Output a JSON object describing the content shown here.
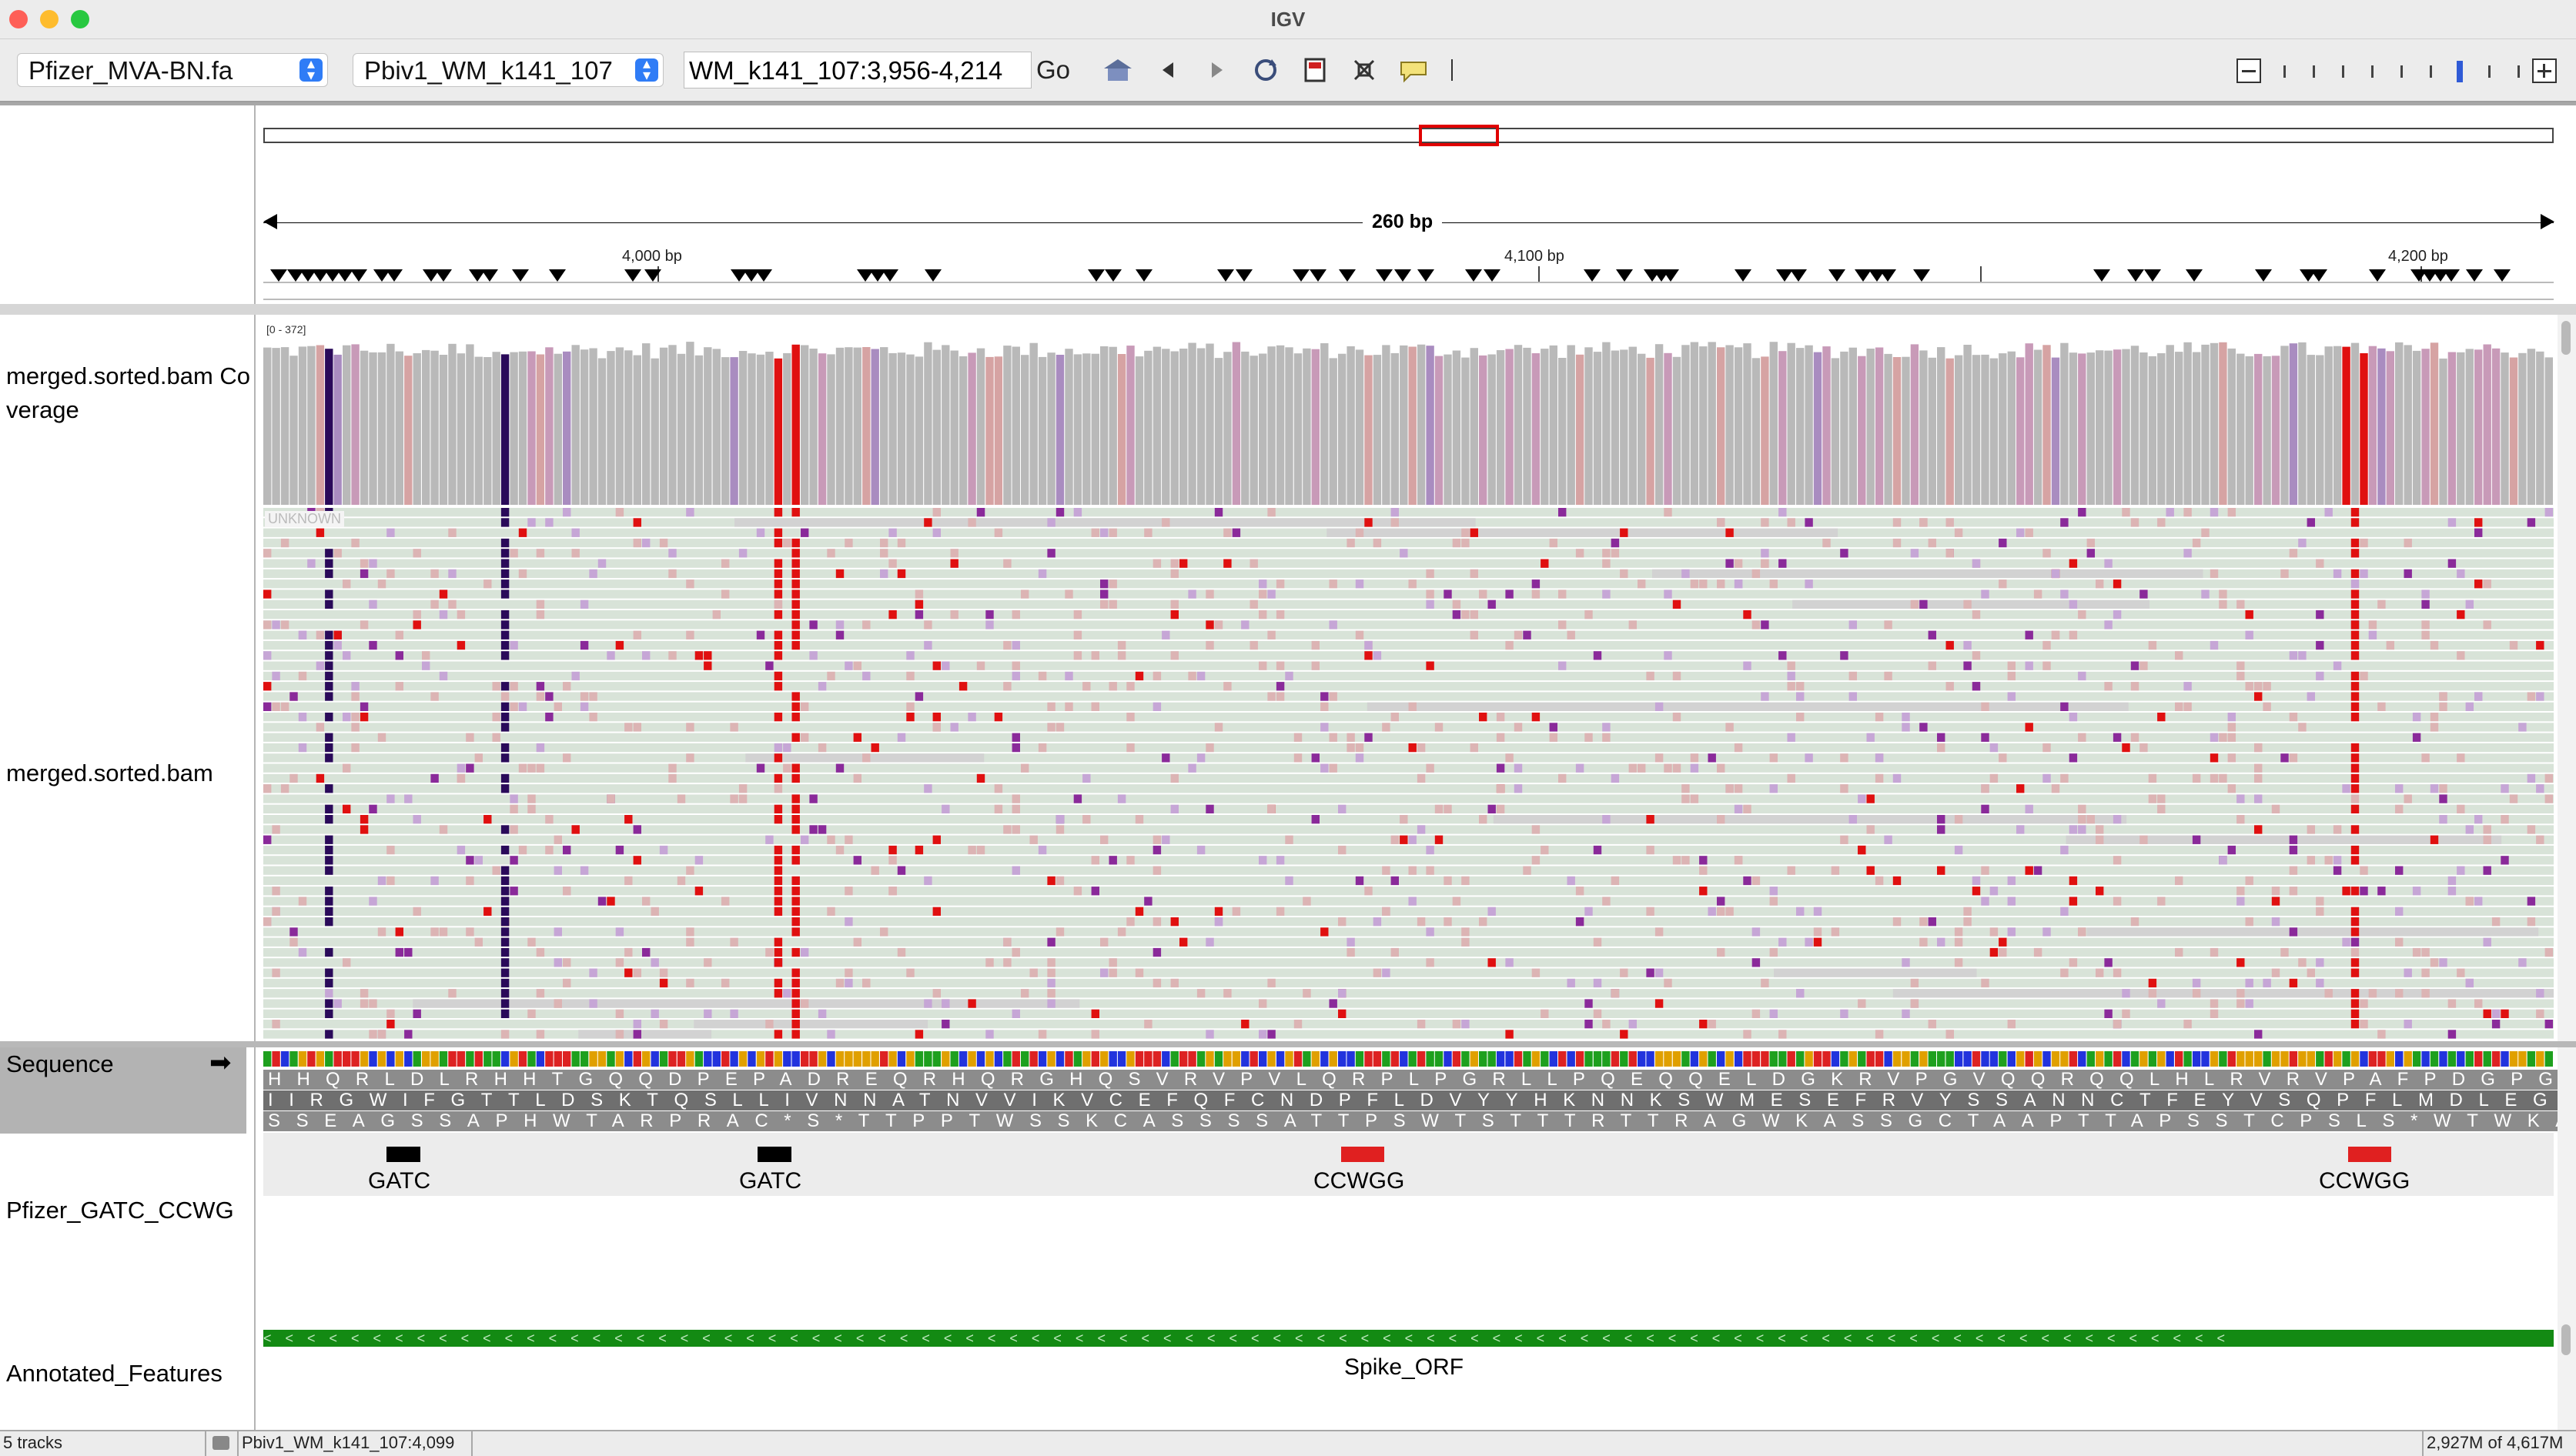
{
  "window": {
    "title": "IGV"
  },
  "toolbar": {
    "genome": "Pfizer_MVA-BN.fa",
    "chromosome": "Pbiv1_WM_k141_107",
    "locus": "WM_k141_107:3,956-4,214",
    "go_label": "Go"
  },
  "ruler": {
    "span_label": "260 bp",
    "ticks": [
      {
        "label": "4,000 bp"
      },
      {
        "label": "4,100 bp"
      },
      {
        "label": "4,200 bp"
      }
    ]
  },
  "tracks": {
    "coverage_name": "merged.sorted.bam Coverage",
    "coverage_name_line1": "merged.sorted.bam Co",
    "coverage_name_line2": "verage",
    "coverage_range": "[0 - 372]",
    "alignment_name": "merged.sorted.bam",
    "alignment_downsample_label": "UNKNOWN",
    "sequence_name": "Sequence",
    "sequence_arrow": "➡",
    "sites_name": "Pfizer_GATC_CCWG",
    "features_name": "Annotated_Features"
  },
  "translation": {
    "frame1": "HHQRLDLRHHTGQQDPEPADREQRHQRGHQSVRVPVLQRPLPGRLLPQEQQELDGKRVPGVQQRQQLHLRVRVPAFPDGPGRQAGQL",
    "frame2": "IIRGWIFGTTLDSKTQSLLIVNNATNVVIKVCEFQFCNDPFLDVYYHKNNKSWMESEFRVYSSANNCTFEYVSQPFLMDLEGKQGN",
    "frame3": "SSEAGSSAPHWTARPRAC*S*TTPPTWSSKCASSSSATTPSWTSTTTRTTRAGWKASSGCTAAPTTAPSSTCPSLS*WTWKASRAT"
  },
  "sites": [
    {
      "label": "GATC",
      "color": "#000000"
    },
    {
      "label": "GATC",
      "color": "#000000"
    },
    {
      "label": "CCWGG",
      "color": "#e02020"
    },
    {
      "label": "CCWGG",
      "color": "#e02020"
    }
  ],
  "features": [
    {
      "label": "Spike_ORF",
      "color": "#138a13",
      "strand_glyph": "<"
    }
  ],
  "status": {
    "tracks": "5 tracks",
    "position": "Pbiv1_WM_k141_107:4,099",
    "memory": "2,927M of 4,617M"
  },
  "colors": {
    "coverage_gray": "#b9b9b9",
    "read_gray": "#d2d2d2",
    "read_bg": "#d8e3d8",
    "mismatch_red": "#e01010",
    "mismatch_purple": "#8a2a9a",
    "mismatch_dark": "#2a0a5a",
    "accent_blue": "#2f7cf6"
  }
}
